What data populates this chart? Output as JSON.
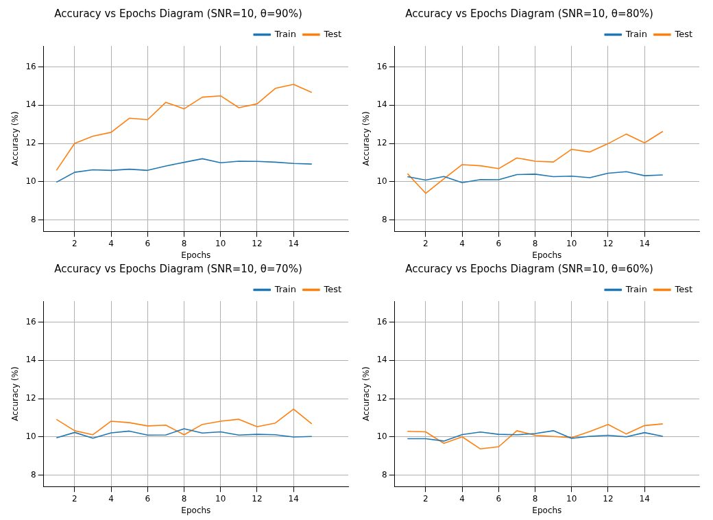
{
  "chart_data": [
    {
      "type": "line",
      "title": "Accuracy vs Epochs Diagram (SNR=10, θ=90%)",
      "xlabel": "Epochs",
      "ylabel": "Accuracy (%)",
      "x": [
        1,
        2,
        3,
        4,
        5,
        6,
        7,
        8,
        9,
        10,
        11,
        12,
        13,
        14,
        15
      ],
      "xlim": [
        0.3,
        17
      ],
      "xticks": [
        2,
        4,
        6,
        8,
        10,
        12,
        14
      ],
      "ylim": [
        7.4,
        17.1
      ],
      "yticks": [
        8,
        10,
        12,
        14,
        16
      ],
      "grid": true,
      "legend": "top right",
      "series": [
        {
          "name": "Train",
          "color": "#1f77b4",
          "values": [
            9.97,
            10.49,
            10.62,
            10.59,
            10.65,
            10.59,
            10.82,
            11.01,
            11.2,
            10.99,
            11.07,
            11.06,
            11.02,
            10.95,
            10.92
          ]
        },
        {
          "name": "Test",
          "color": "#ff7f0e",
          "values": [
            10.59,
            12.0,
            12.38,
            12.58,
            13.32,
            13.24,
            14.15,
            13.81,
            14.42,
            14.49,
            13.87,
            14.07,
            14.88,
            15.09,
            14.67
          ]
        }
      ]
    },
    {
      "type": "line",
      "title": "Accuracy vs Epochs Diagram (SNR=10, θ=80%)",
      "xlabel": "Epochs",
      "ylabel": "Accuracy (%)",
      "x": [
        1,
        2,
        3,
        4,
        5,
        6,
        7,
        8,
        9,
        10,
        11,
        12,
        13,
        14,
        15
      ],
      "xlim": [
        0.3,
        17
      ],
      "xticks": [
        2,
        4,
        6,
        8,
        10,
        12,
        14
      ],
      "ylim": [
        7.4,
        17.1
      ],
      "yticks": [
        8,
        10,
        12,
        14,
        16
      ],
      "grid": true,
      "legend": "top right",
      "series": [
        {
          "name": "Train",
          "color": "#1f77b4",
          "values": [
            10.26,
            10.08,
            10.27,
            9.95,
            10.11,
            10.1,
            10.37,
            10.39,
            10.26,
            10.29,
            10.21,
            10.44,
            10.52,
            10.31,
            10.35
          ]
        },
        {
          "name": "Test",
          "color": "#ff7f0e",
          "values": [
            10.42,
            9.39,
            10.15,
            10.89,
            10.83,
            10.68,
            11.24,
            11.07,
            11.03,
            11.69,
            11.55,
            11.99,
            12.49,
            12.03,
            12.63
          ]
        }
      ]
    },
    {
      "type": "line",
      "title": "Accuracy vs Epochs Diagram (SNR=10, θ=70%)",
      "xlabel": "Epochs",
      "ylabel": "Accuracy (%)",
      "x": [
        1,
        2,
        3,
        4,
        5,
        6,
        7,
        8,
        9,
        10,
        11,
        12,
        13,
        14,
        15
      ],
      "xlim": [
        0.3,
        17
      ],
      "xticks": [
        2,
        4,
        6,
        8,
        10,
        12,
        14
      ],
      "ylim": [
        7.4,
        17.1
      ],
      "yticks": [
        8,
        10,
        12,
        14,
        16
      ],
      "grid": true,
      "legend": "top right",
      "series": [
        {
          "name": "Train",
          "color": "#1f77b4",
          "values": [
            9.95,
            10.23,
            9.93,
            10.21,
            10.3,
            10.09,
            10.1,
            10.42,
            10.2,
            10.26,
            10.09,
            10.13,
            10.11,
            9.99,
            10.02
          ]
        },
        {
          "name": "Test",
          "color": "#ff7f0e",
          "values": [
            10.91,
            10.32,
            10.11,
            10.82,
            10.74,
            10.57,
            10.61,
            10.11,
            10.65,
            10.82,
            10.92,
            10.53,
            10.72,
            11.45,
            10.68
          ]
        }
      ]
    },
    {
      "type": "line",
      "title": "Accuracy vs Epochs Diagram (SNR=10, θ=60%)",
      "xlabel": "Epochs",
      "ylabel": "Accuracy (%)",
      "x": [
        1,
        2,
        3,
        4,
        5,
        6,
        7,
        8,
        9,
        10,
        11,
        12,
        13,
        14,
        15
      ],
      "xlim": [
        0.3,
        17
      ],
      "xticks": [
        2,
        4,
        6,
        8,
        10,
        12,
        14
      ],
      "ylim": [
        7.4,
        17.1
      ],
      "yticks": [
        8,
        10,
        12,
        14,
        16
      ],
      "grid": true,
      "legend": "top right",
      "series": [
        {
          "name": "Train",
          "color": "#1f77b4",
          "values": [
            9.9,
            9.9,
            9.78,
            10.12,
            10.25,
            10.13,
            10.11,
            10.17,
            10.32,
            9.92,
            10.03,
            10.08,
            10.0,
            10.22,
            10.03
          ]
        },
        {
          "name": "Test",
          "color": "#ff7f0e",
          "values": [
            10.29,
            10.26,
            9.66,
            10.0,
            9.37,
            9.48,
            10.32,
            10.08,
            10.02,
            9.96,
            10.28,
            10.65,
            10.15,
            10.59,
            10.68
          ]
        }
      ]
    }
  ]
}
